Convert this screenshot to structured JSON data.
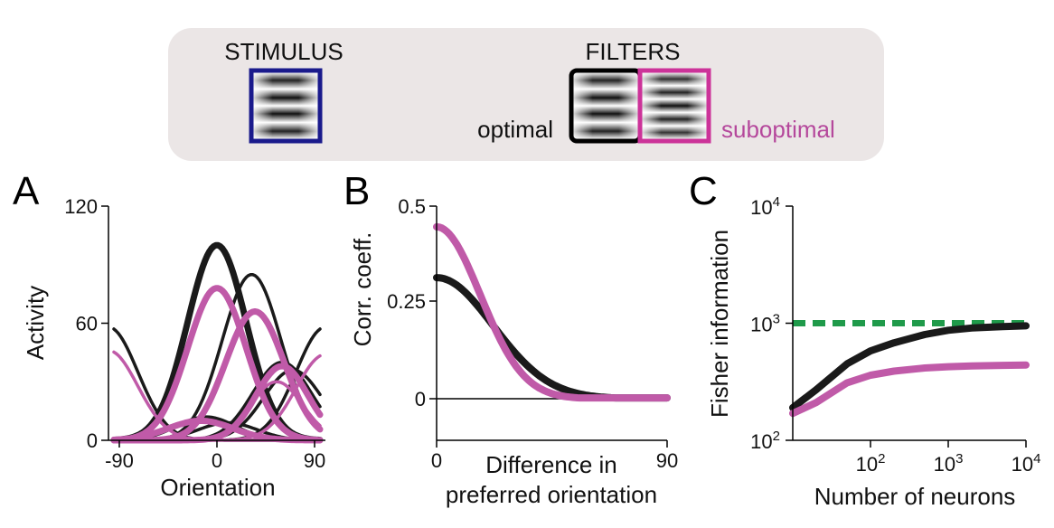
{
  "header": {
    "stimulus_label": "STIMULUS",
    "filters_label": "FILTERS",
    "optimal_label": "optimal",
    "suboptimal_label": "suboptimal",
    "colors": {
      "box_bg": "#ebe6e6",
      "stimulus_border": "#1a1a8c",
      "optimal_border": "#000000",
      "suboptimal_border": "#cc3399",
      "suboptimal_text": "#b5489c"
    }
  },
  "chart_data": [
    {
      "panel": "A",
      "type": "line",
      "xlabel": "Orientation",
      "ylabel": "Activity",
      "xlim": [
        -100,
        100
      ],
      "ylim": [
        0,
        120
      ],
      "xticks": [
        "-90",
        "0",
        "90"
      ],
      "yticks": [
        "0",
        "60",
        "120"
      ],
      "colors": {
        "black": "#1a1a1a",
        "magenta": "#c05aa8"
      },
      "series": [
        {
          "color": "black",
          "bold": true,
          "type": "bump",
          "peak": 100,
          "center": 0,
          "width": 27
        },
        {
          "color": "black",
          "bold": false,
          "type": "bump",
          "peak": 85,
          "center": 32,
          "width": 27
        },
        {
          "color": "black",
          "bold": false,
          "type": "bump",
          "peak": 58,
          "center": -100,
          "width": 27
        },
        {
          "color": "black",
          "bold": false,
          "type": "bump",
          "peak": 58,
          "center": 100,
          "width": 27
        },
        {
          "color": "black",
          "bold": false,
          "type": "bump",
          "peak": 40,
          "center": 60,
          "width": 27
        },
        {
          "color": "black",
          "bold": false,
          "type": "bump",
          "peak": 36,
          "center": 70,
          "width": 27
        },
        {
          "color": "black",
          "bold": false,
          "type": "bump",
          "peak": 12,
          "center": -10,
          "width": 27
        },
        {
          "color": "black",
          "bold": false,
          "type": "bump",
          "peak": 9,
          "center": 10,
          "width": 27
        },
        {
          "color": "magenta",
          "bold": true,
          "type": "bump",
          "peak": 78,
          "center": 0,
          "width": 27
        },
        {
          "color": "magenta",
          "bold": true,
          "type": "bump",
          "peak": 66,
          "center": 35,
          "width": 27
        },
        {
          "color": "magenta",
          "bold": false,
          "type": "bump",
          "peak": 46,
          "center": -100,
          "width": 27
        },
        {
          "color": "magenta",
          "bold": false,
          "type": "bump",
          "peak": 44,
          "center": 100,
          "width": 27
        },
        {
          "color": "magenta",
          "bold": true,
          "type": "bump",
          "peak": 38,
          "center": 60,
          "width": 24
        },
        {
          "color": "magenta",
          "bold": false,
          "type": "bump",
          "peak": 30,
          "center": 55,
          "width": 24
        },
        {
          "color": "magenta",
          "bold": true,
          "type": "bump",
          "peak": 10,
          "center": -15,
          "width": 30
        }
      ]
    },
    {
      "panel": "B",
      "type": "line",
      "xlabel": "Difference in preferred orientation",
      "ylabel": "Corr. coeff.",
      "xlim": [
        0,
        90
      ],
      "ylim": [
        -0.1,
        0.5
      ],
      "xticks": [
        "0",
        "90"
      ],
      "yticks": [
        "0",
        "0.25",
        "0.5"
      ],
      "series": [
        {
          "color": "black",
          "x": [
            0,
            10,
            20,
            30,
            40,
            50,
            60,
            70,
            80,
            90
          ],
          "y": [
            0.31,
            0.28,
            0.22,
            0.15,
            0.08,
            0.035,
            0.012,
            0.004,
            0.002,
            0.002
          ]
        },
        {
          "color": "magenta",
          "x": [
            0,
            10,
            20,
            30,
            40,
            50,
            60,
            70,
            80,
            90
          ],
          "y": [
            0.44,
            0.38,
            0.27,
            0.15,
            0.06,
            0.015,
            0.003,
            0.002,
            0.002,
            0.002
          ]
        }
      ]
    },
    {
      "panel": "C",
      "type": "line",
      "xlabel": "Number of neurons",
      "ylabel": "Fisher information",
      "x_scale": "log",
      "y_scale": "log",
      "xlim": [
        10,
        10000
      ],
      "ylim": [
        100,
        10000
      ],
      "xticks": [
        {
          "base": "10",
          "exp": "2"
        },
        {
          "base": "10",
          "exp": "3"
        },
        {
          "base": "10",
          "exp": "4"
        }
      ],
      "yticks": [
        {
          "base": "10",
          "exp": "2"
        },
        {
          "base": "10",
          "exp": "3"
        },
        {
          "base": "10",
          "exp": "4"
        }
      ],
      "colors": {
        "green": "#1f9a4a"
      },
      "series": [
        {
          "color": "green",
          "dashed": true,
          "x": [
            10,
            10000
          ],
          "y": [
            1000,
            1000
          ]
        },
        {
          "color": "black",
          "x": [
            10,
            20,
            50,
            100,
            200,
            500,
            1000,
            2000,
            5000,
            10000
          ],
          "y": [
            190,
            270,
            450,
            580,
            680,
            800,
            870,
            910,
            935,
            950
          ]
        },
        {
          "color": "magenta",
          "x": [
            10,
            20,
            50,
            100,
            200,
            500,
            1000,
            2000,
            5000,
            10000
          ],
          "y": [
            170,
            210,
            310,
            360,
            390,
            415,
            425,
            432,
            437,
            440
          ]
        }
      ]
    }
  ],
  "panels": {
    "a": "A",
    "b": "B",
    "c": "C"
  }
}
